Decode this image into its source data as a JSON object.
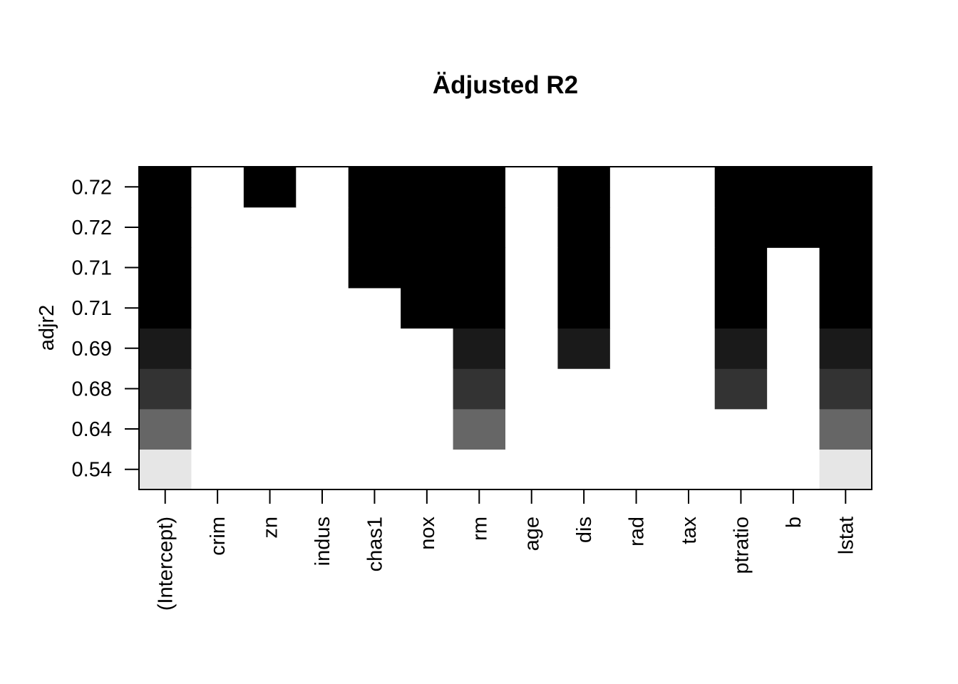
{
  "chart_data": {
    "type": "heatmap",
    "title": "Ädjusted R2",
    "xlabel": "",
    "ylabel": "adjr2",
    "variables": [
      "(Intercept)",
      "crim",
      "zn",
      "indus",
      "chas1",
      "nox",
      "rm",
      "age",
      "dis",
      "rad",
      "tax",
      "ptratio",
      "b",
      "lstat"
    ],
    "y_tick_labels": [
      "0.54",
      "0.64",
      "0.68",
      "0.69",
      "0.71",
      "0.71",
      "0.72",
      "0.72"
    ],
    "rows": [
      {
        "adjr2": "0.54",
        "shade": "#e6e6e6",
        "included": [
          "(Intercept)",
          "lstat"
        ]
      },
      {
        "adjr2": "0.64",
        "shade": "#666666",
        "included": [
          "(Intercept)",
          "rm",
          "lstat"
        ]
      },
      {
        "adjr2": "0.68",
        "shade": "#333333",
        "included": [
          "(Intercept)",
          "rm",
          "ptratio",
          "lstat"
        ]
      },
      {
        "adjr2": "0.69",
        "shade": "#1a1a1a",
        "included": [
          "(Intercept)",
          "rm",
          "dis",
          "ptratio",
          "lstat"
        ]
      },
      {
        "adjr2": "0.71",
        "shade": "#000000",
        "included": [
          "(Intercept)",
          "nox",
          "rm",
          "dis",
          "ptratio",
          "lstat"
        ]
      },
      {
        "adjr2": "0.71",
        "shade": "#000000",
        "included": [
          "(Intercept)",
          "chas1",
          "nox",
          "rm",
          "dis",
          "ptratio",
          "lstat"
        ]
      },
      {
        "adjr2": "0.72",
        "shade": "#000000",
        "included": [
          "(Intercept)",
          "chas1",
          "nox",
          "rm",
          "dis",
          "ptratio",
          "b",
          "lstat"
        ]
      },
      {
        "adjr2": "0.72",
        "shade": "#000000",
        "included": [
          "(Intercept)",
          "zn",
          "chas1",
          "nox",
          "rm",
          "dis",
          "ptratio",
          "b",
          "lstat"
        ]
      }
    ],
    "excluded_color": "#ffffff",
    "grid": false,
    "legend": "none"
  }
}
